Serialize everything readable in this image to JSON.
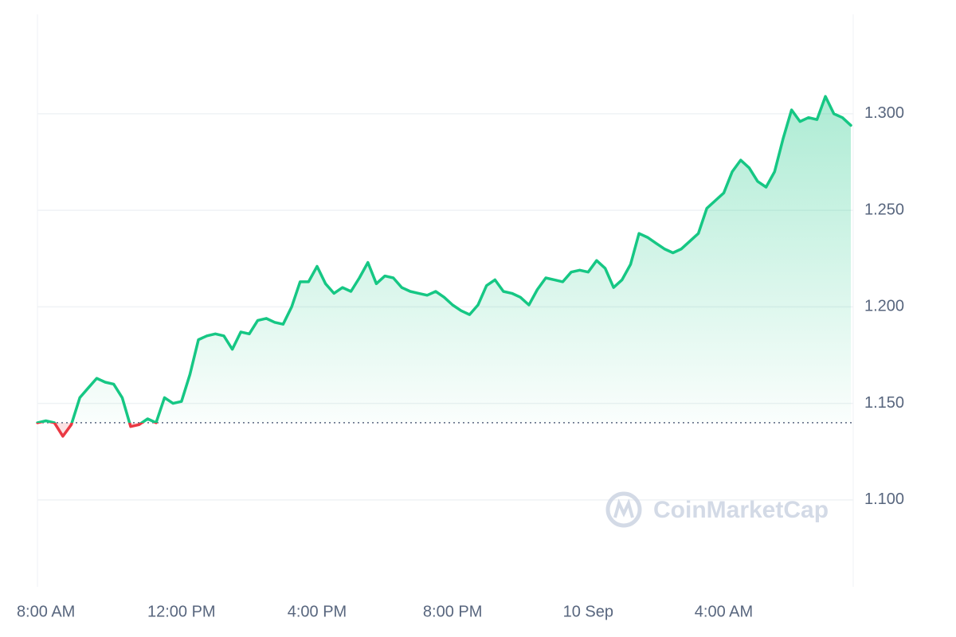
{
  "chart_data": {
    "type": "line",
    "series": [
      {
        "color": "#16c784",
        "down_color": "#ea3943",
        "values": [
          1.14,
          1.141,
          1.14,
          1.133,
          1.139,
          1.153,
          1.158,
          1.163,
          1.161,
          1.16,
          1.153,
          1.138,
          1.139,
          1.142,
          1.14,
          1.153,
          1.15,
          1.151,
          1.165,
          1.183,
          1.185,
          1.186,
          1.185,
          1.178,
          1.187,
          1.186,
          1.193,
          1.194,
          1.192,
          1.191,
          1.2,
          1.213,
          1.213,
          1.221,
          1.212,
          1.207,
          1.21,
          1.208,
          1.215,
          1.223,
          1.212,
          1.216,
          1.215,
          1.21,
          1.208,
          1.207,
          1.206,
          1.208,
          1.205,
          1.201,
          1.198,
          1.196,
          1.201,
          1.211,
          1.214,
          1.208,
          1.207,
          1.205,
          1.201,
          1.209,
          1.215,
          1.214,
          1.213,
          1.218,
          1.219,
          1.218,
          1.224,
          1.22,
          1.21,
          1.214,
          1.222,
          1.238,
          1.236,
          1.233,
          1.23,
          1.228,
          1.23,
          1.234,
          1.238,
          1.251,
          1.255,
          1.259,
          1.27,
          1.276,
          1.272,
          1.265,
          1.262,
          1.27,
          1.287,
          1.302,
          1.296,
          1.298,
          1.297,
          1.309,
          1.3,
          1.298,
          1.294
        ]
      }
    ],
    "baseline": 1.14,
    "xlim": [
      0,
      96
    ],
    "xticks": [
      {
        "value": 1,
        "label": "8:00 AM"
      },
      {
        "value": 17,
        "label": "12:00 PM"
      },
      {
        "value": 33,
        "label": "4:00 PM"
      },
      {
        "value": 49,
        "label": "8:00 PM"
      },
      {
        "value": 65,
        "label": "10 Sep"
      },
      {
        "value": 81,
        "label": "4:00 AM"
      }
    ],
    "ylim": [
      1.055,
      1.3515
    ],
    "yticks": [
      {
        "value": 1.1,
        "label": "1.100"
      },
      {
        "value": 1.15,
        "label": "1.150"
      },
      {
        "value": 1.2,
        "label": "1.200"
      },
      {
        "value": 1.25,
        "label": "1.250"
      },
      {
        "value": 1.3,
        "label": "1.300"
      }
    ],
    "grid": true,
    "watermark": "CoinMarketCap"
  }
}
